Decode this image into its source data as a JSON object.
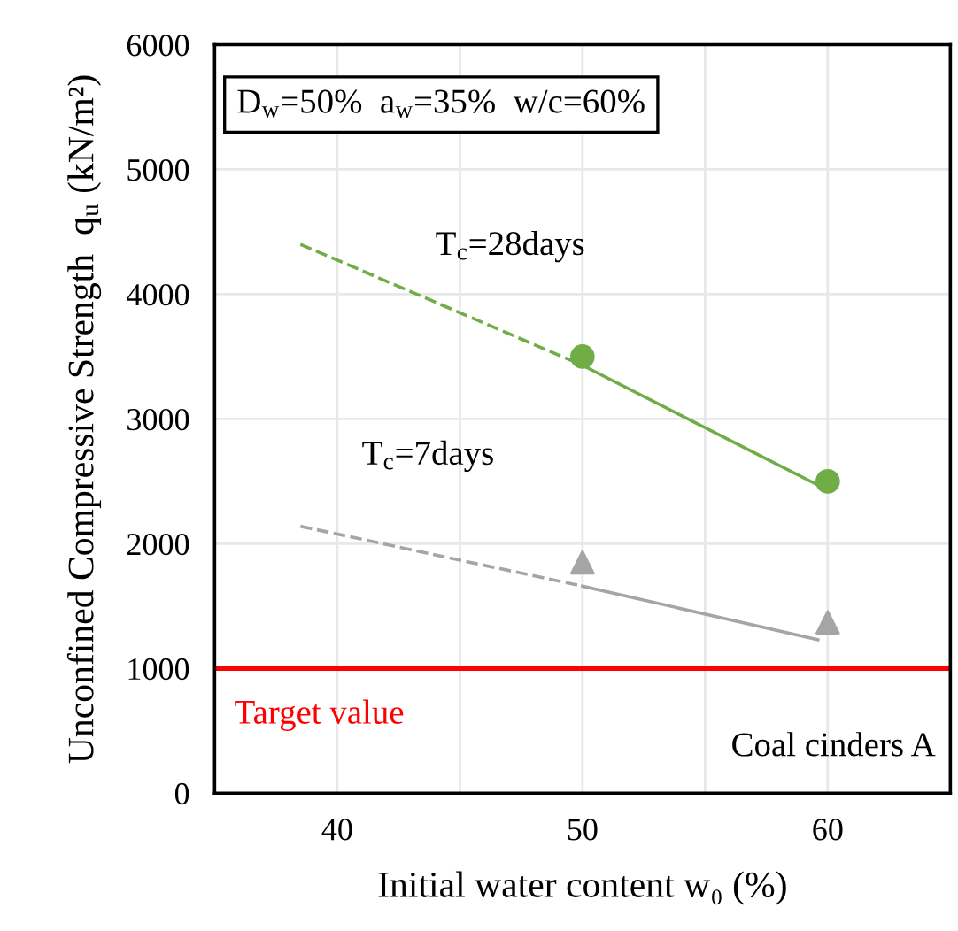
{
  "chart_data": {
    "type": "scatter",
    "xlabel": "Initial water content w₀ (%)",
    "ylabel": "Unconfined Compressive Strength  q$_{u}$ (kN/m²)",
    "xlim": [
      35,
      65
    ],
    "xticks": [
      {
        "value": 35,
        "label": null
      },
      40,
      {
        "value": 45,
        "label": null
      },
      50,
      {
        "value": 55,
        "label": null
      },
      60,
      {
        "value": 65,
        "label": null
      }
    ],
    "ylim": [
      0,
      6000
    ],
    "yticks": [
      0,
      1000,
      2000,
      3000,
      4000,
      5000,
      6000
    ],
    "grid": true,
    "series": [
      {
        "type": "line",
        "color": "#70ad47",
        "line_style": "dashed",
        "marker": "none",
        "x": [
          38.5,
          50
        ],
        "values": [
          4400,
          3430
        ]
      },
      {
        "type": "line",
        "color": "#70ad47",
        "line_style": "solid",
        "marker": "none",
        "x": [
          50,
          59.8
        ],
        "values": [
          3430,
          2450
        ]
      },
      {
        "type": "line",
        "color": "#a5a5a5",
        "line_style": "dashed",
        "marker": "none",
        "x": [
          38.5,
          50
        ],
        "values": [
          2140,
          1660
        ]
      },
      {
        "type": "line",
        "color": "#a5a5a5",
        "line_style": "solid",
        "marker": "none",
        "x": [
          50,
          59.6
        ],
        "values": [
          1660,
          1230
        ]
      },
      {
        "color": "#70ad47",
        "marker": "circle",
        "x": [
          50,
          60
        ],
        "values": [
          3500,
          2500
        ]
      },
      {
        "color": "#a5a5a5",
        "marker": "triangle",
        "x": [
          50,
          60
        ],
        "values": [
          1850,
          1370
        ]
      }
    ],
    "ref_lines": [
      {
        "axis": "y",
        "value": 1000,
        "label": "Target value",
        "color": "#ff0000"
      }
    ],
    "annotations": [
      "D$_{w}$=50%  a$_{w}$=35%  w/c=60%",
      "Coal cinders A",
      "T$_{c}$=28days",
      "T$_{c}$=7days"
    ]
  }
}
